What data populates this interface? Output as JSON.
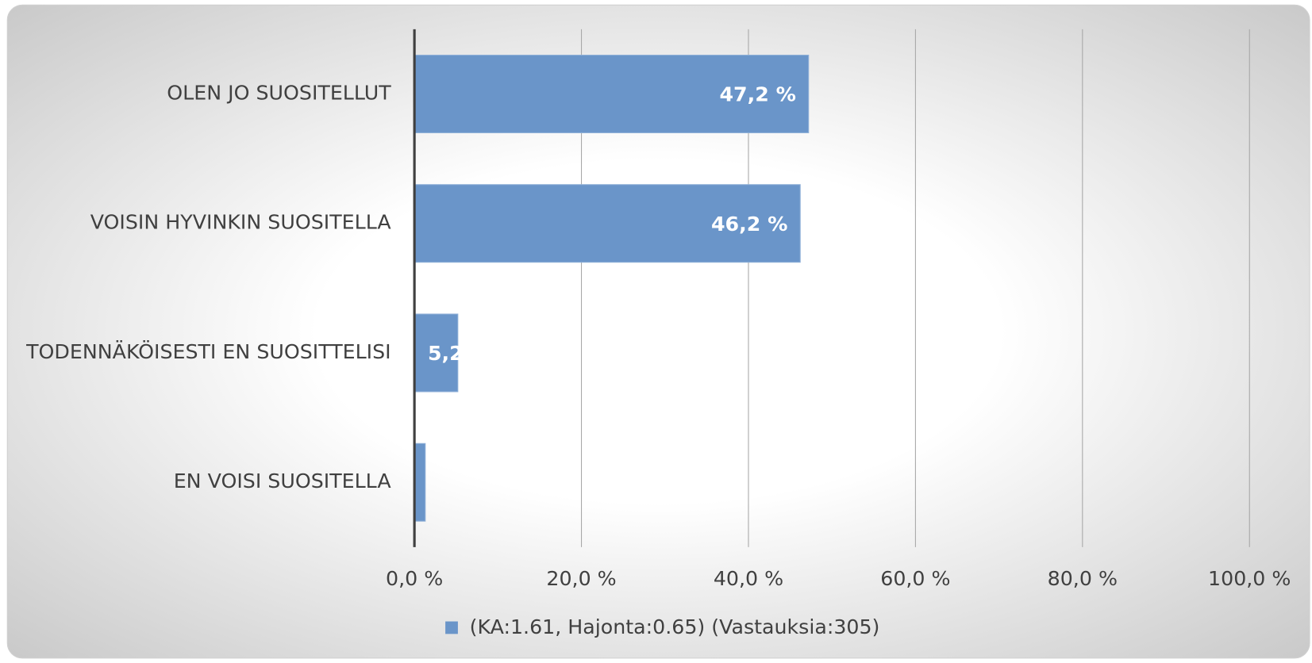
{
  "chart_data": {
    "type": "bar",
    "orientation": "horizontal",
    "categories": [
      "OLEN JO SUOSITELLUT",
      "VOISIN HYVINKIN SUOSITELLA",
      "TODENNÄKÖISESTI EN SUOSITTELISI",
      "EN VOISI SUOSITELLA"
    ],
    "series": [
      {
        "name": "(KA:1.61, Hajonta:0.65) (Vastauksia:305)",
        "color": "#6a95c9",
        "values": [
          47.2,
          46.2,
          5.2,
          1.3
        ],
        "value_labels": [
          "47,2 %",
          "46,2 %",
          "5,2",
          null
        ]
      }
    ],
    "xlim": [
      0,
      100
    ],
    "xticks": [
      {
        "value": 0,
        "label": "0,0 %"
      },
      {
        "value": 20,
        "label": "20,0 %"
      },
      {
        "value": 40,
        "label": "40,0 %"
      },
      {
        "value": 60,
        "label": "60,0 %"
      },
      {
        "value": 80,
        "label": "80,0 %"
      },
      {
        "value": 100,
        "label": "100,0 %"
      }
    ],
    "grid": true,
    "legend": "bottom"
  }
}
